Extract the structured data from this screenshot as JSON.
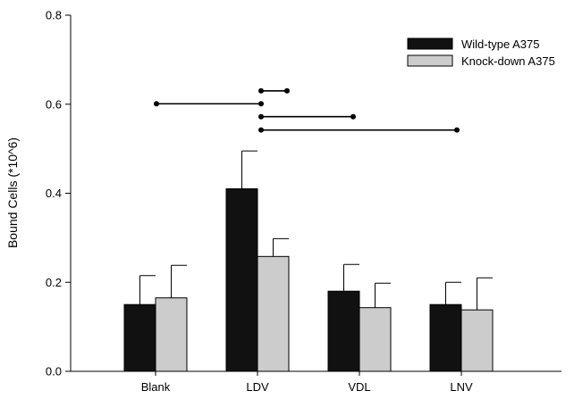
{
  "chart_data": {
    "type": "bar",
    "title": "",
    "xlabel": "",
    "ylabel": "Bound Cells (*10^6)",
    "ylim": [
      0,
      0.8
    ],
    "yticks": [
      "0.0",
      "0.2",
      "0.4",
      "0.6",
      "0.8"
    ],
    "categories": [
      "Blank",
      "LDV",
      "VDL",
      "LNV"
    ],
    "series": [
      {
        "name": "Wild-type A375",
        "color": "#111111",
        "values": [
          0.15,
          0.41,
          0.18,
          0.15
        ],
        "errors": [
          0.065,
          0.085,
          0.06,
          0.05
        ]
      },
      {
        "name": "Knock-down A375",
        "color": "#cccccc",
        "values": [
          0.165,
          0.258,
          0.143,
          0.138
        ],
        "errors": [
          0.073,
          0.04,
          0.055,
          0.072
        ]
      }
    ],
    "legend_position": "top-right",
    "grid": false,
    "significance_brackets": [
      {
        "from": "Blank",
        "to": "LDV",
        "y": 0.601
      },
      {
        "from": "LDV",
        "to": "LDV-right",
        "y": 0.63
      },
      {
        "from": "LDV",
        "to": "VDL",
        "y": 0.572
      },
      {
        "from": "LDV",
        "to": "LNV",
        "y": 0.542
      }
    ]
  }
}
